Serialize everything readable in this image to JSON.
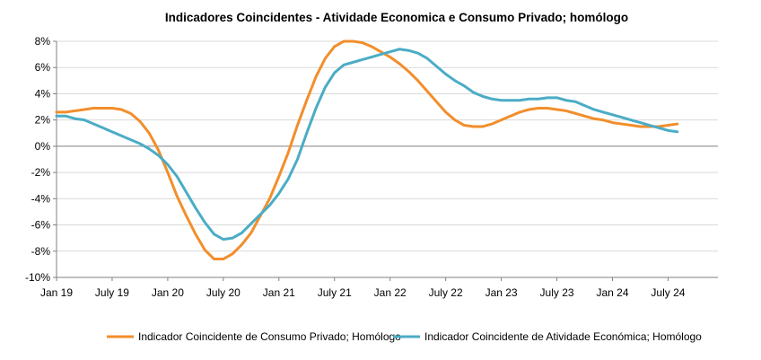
{
  "chart_data": {
    "type": "line",
    "title": "Indicadores Coincidentes - Atividade Economica e Consumo Privado; homólogo",
    "xlabel": "",
    "ylabel": "",
    "ylim": [
      -10,
      8
    ],
    "yticks": [
      8,
      6,
      4,
      2,
      0,
      -2,
      -4,
      -6,
      -8,
      -10
    ],
    "ytick_labels": [
      "8%",
      "6%",
      "4%",
      "2%",
      "0%",
      "-2%",
      "-4%",
      "-6%",
      "-8%",
      "-10%"
    ],
    "xticks": [
      "Jan 19",
      "July 19",
      "Jan 20",
      "July 20",
      "Jan 21",
      "July 21",
      "Jan 22",
      "July 22",
      "Jan 23",
      "July 23",
      "Jan 24",
      "July 24"
    ],
    "grid": "horizontal",
    "legend_position": "bottom",
    "colors": {
      "consumo": "#F28E2B",
      "atividade": "#4BACC6",
      "grid": "#d9d9d9",
      "axis": "#808080"
    },
    "x_months": [
      "2019-01",
      "2019-02",
      "2019-03",
      "2019-04",
      "2019-05",
      "2019-06",
      "2019-07",
      "2019-08",
      "2019-09",
      "2019-10",
      "2019-11",
      "2019-12",
      "2020-01",
      "2020-02",
      "2020-03",
      "2020-04",
      "2020-05",
      "2020-06",
      "2020-07",
      "2020-08",
      "2020-09",
      "2020-10",
      "2020-11",
      "2020-12",
      "2021-01",
      "2021-02",
      "2021-03",
      "2021-04",
      "2021-05",
      "2021-06",
      "2021-07",
      "2021-08",
      "2021-09",
      "2021-10",
      "2021-11",
      "2021-12",
      "2022-01",
      "2022-02",
      "2022-03",
      "2022-04",
      "2022-05",
      "2022-06",
      "2022-07",
      "2022-08",
      "2022-09",
      "2022-10",
      "2022-11",
      "2022-12",
      "2023-01",
      "2023-02",
      "2023-03",
      "2023-04",
      "2023-05",
      "2023-06",
      "2023-07",
      "2023-08",
      "2023-09",
      "2023-10",
      "2023-11",
      "2023-12",
      "2024-01",
      "2024-02",
      "2024-03",
      "2024-04",
      "2024-05",
      "2024-06",
      "2024-07",
      "2024-08"
    ],
    "series": [
      {
        "name": "Indicador Coincidente de Consumo Privado; Homólogo",
        "values": [
          2.6,
          2.6,
          2.7,
          2.8,
          2.9,
          2.9,
          2.9,
          2.8,
          2.5,
          1.9,
          1.0,
          -0.3,
          -2.0,
          -3.8,
          -5.3,
          -6.7,
          -7.9,
          -8.6,
          -8.6,
          -8.2,
          -7.5,
          -6.6,
          -5.3,
          -4.0,
          -2.3,
          -0.5,
          1.6,
          3.5,
          5.3,
          6.7,
          7.6,
          8.0,
          8.0,
          7.9,
          7.6,
          7.2,
          6.8,
          6.3,
          5.7,
          5.0,
          4.2,
          3.4,
          2.6,
          2.0,
          1.6,
          1.5,
          1.5,
          1.7,
          2.0,
          2.3,
          2.6,
          2.8,
          2.9,
          2.9,
          2.8,
          2.7,
          2.5,
          2.3,
          2.1,
          2.0,
          1.8,
          1.7,
          1.6,
          1.5,
          1.5,
          1.5,
          1.6,
          1.7
        ]
      },
      {
        "name": "Indicador Coincidente de Atividade Económica; Homólogo",
        "values": [
          2.3,
          2.3,
          2.1,
          2.0,
          1.7,
          1.4,
          1.1,
          0.8,
          0.5,
          0.2,
          -0.2,
          -0.7,
          -1.4,
          -2.3,
          -3.5,
          -4.7,
          -5.8,
          -6.7,
          -7.1,
          -7.0,
          -6.6,
          -5.9,
          -5.2,
          -4.5,
          -3.6,
          -2.5,
          -1.0,
          1.0,
          2.9,
          4.5,
          5.6,
          6.2,
          6.4,
          6.6,
          6.8,
          7.0,
          7.2,
          7.4,
          7.3,
          7.1,
          6.7,
          6.1,
          5.5,
          5.0,
          4.6,
          4.1,
          3.8,
          3.6,
          3.5,
          3.5,
          3.5,
          3.6,
          3.6,
          3.7,
          3.7,
          3.5,
          3.4,
          3.1,
          2.8,
          2.6,
          2.4,
          2.2,
          2.0,
          1.8,
          1.6,
          1.4,
          1.2,
          1.1
        ]
      }
    ]
  }
}
